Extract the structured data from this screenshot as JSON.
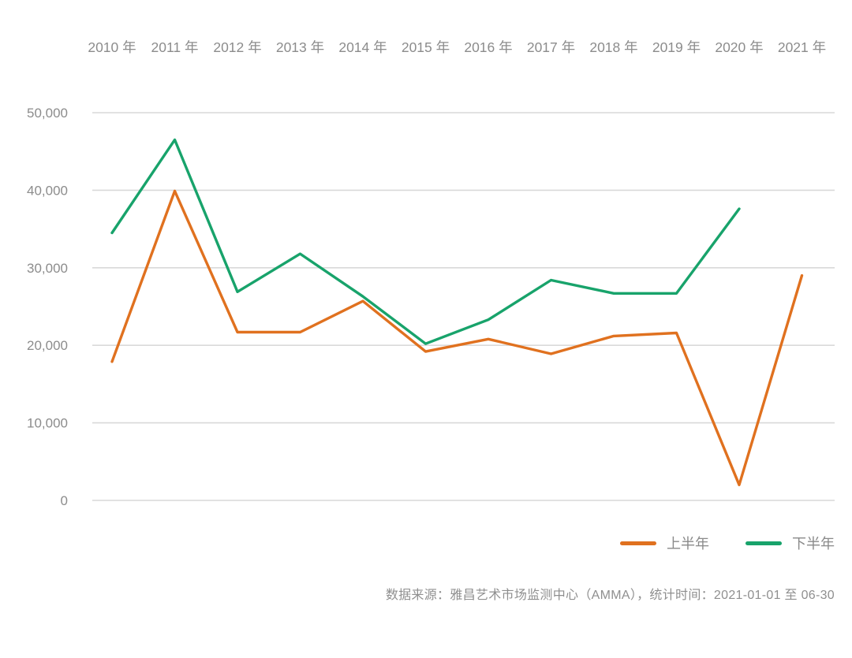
{
  "chart_data": {
    "type": "line",
    "title": "",
    "categories": [
      "2010 年",
      "2011 年",
      "2012 年",
      "2013 年",
      "2014 年",
      "2015 年",
      "2016 年",
      "2017 年",
      "2018 年",
      "2019 年",
      "2020 年",
      "2021 年"
    ],
    "series": [
      {
        "id": "first-half",
        "name": "上半年",
        "color": "#E0711F",
        "values": [
          17900,
          39900,
          21700,
          21700,
          25700,
          19200,
          20800,
          18900,
          21200,
          21600,
          2000,
          29000
        ]
      },
      {
        "id": "second-half",
        "name": "下半年",
        "color": "#18A36B",
        "values": [
          34500,
          46500,
          26900,
          31800,
          26300,
          20200,
          23300,
          28400,
          26700,
          26700,
          37600,
          null
        ]
      }
    ],
    "xlabel": "",
    "ylabel": "",
    "ylim": [
      0,
      50000
    ],
    "ytick_interval": 10000,
    "ytick_labels": [
      "0",
      "10,000",
      "20,000",
      "30,000",
      "40,000",
      "50,000"
    ],
    "x_axis_position": "top",
    "grid": true,
    "legend_position": "bottom-right",
    "colors": {
      "grid_line": "#d9d9d9",
      "tick_text": "#8c8c8c",
      "background": "#ffffff"
    }
  },
  "legend": {
    "items_note": "labels bound from chart_data.series names"
  },
  "footer": {
    "source_text": "数据来源：雅昌艺术市场监测中心（AMMA），统计时间：2021-01-01 至 06-30"
  }
}
